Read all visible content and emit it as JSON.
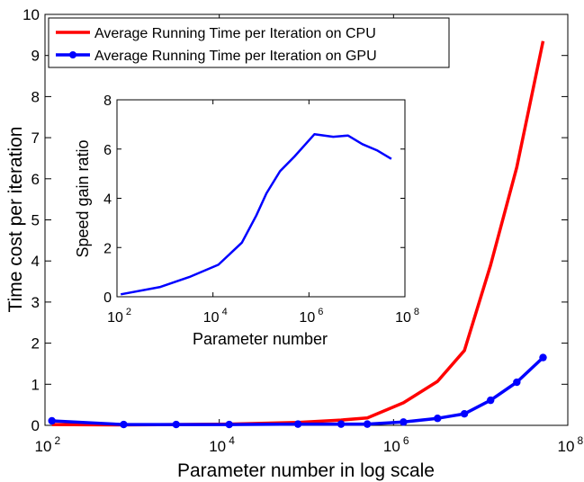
{
  "chart_data": [
    {
      "type": "line",
      "xscale": "log",
      "xlabel": "Parameter number in  log scale",
      "ylabel": "Time cost per iteration",
      "xlim": [
        100,
        100000000
      ],
      "ylim": [
        0,
        10
      ],
      "xticks": [
        {
          "value": 100,
          "base": "10",
          "exp": "2"
        },
        {
          "value": 10000,
          "base": "10",
          "exp": "4"
        },
        {
          "value": 1000000,
          "base": "10",
          "exp": "6"
        },
        {
          "value": 100000000,
          "base": "10",
          "exp": "8"
        }
      ],
      "yticks": [
        "0",
        "1",
        "2",
        "3",
        "4",
        "5",
        "6",
        "7",
        "8",
        "9",
        "10"
      ],
      "grid": false,
      "legend_position": "top-left",
      "series": [
        {
          "name": "Average Running Time per Iteration on CPU",
          "color": "#ff0000",
          "marker": "none",
          "x": [
            120,
            800,
            3200,
            13000,
            80000,
            250000,
            500000,
            1300000,
            3200000,
            6500000,
            13000000,
            26000000,
            52000000
          ],
          "y": [
            0.02,
            0.01,
            0.02,
            0.03,
            0.07,
            0.13,
            0.18,
            0.55,
            1.07,
            1.82,
            3.9,
            6.28,
            9.35
          ]
        },
        {
          "name": "Average Running Time per Iteration on GPU",
          "color": "#0000ff",
          "marker": "circle",
          "x": [
            120,
            800,
            3200,
            13000,
            80000,
            250000,
            500000,
            1300000,
            3200000,
            6500000,
            13000000,
            26000000,
            52000000
          ],
          "y": [
            0.11,
            0.02,
            0.02,
            0.02,
            0.03,
            0.03,
            0.03,
            0.08,
            0.17,
            0.28,
            0.61,
            1.05,
            1.65
          ]
        }
      ]
    },
    {
      "type": "line",
      "xscale": "log",
      "xlabel": "Parameter number",
      "ylabel": "Speed gain ratio",
      "xlim": [
        100,
        100000000
      ],
      "ylim": [
        0,
        8
      ],
      "xticks": [
        {
          "value": 100,
          "base": "10",
          "exp": "2"
        },
        {
          "value": 10000,
          "base": "10",
          "exp": "4"
        },
        {
          "value": 1000000,
          "base": "10",
          "exp": "6"
        },
        {
          "value": 100000000,
          "base": "10",
          "exp": "8"
        }
      ],
      "yticks": [
        "0",
        "2",
        "4",
        "6",
        "8"
      ],
      "grid": false,
      "series": [
        {
          "color": "#0000ff",
          "x": [
            120,
            800,
            3200,
            13000,
            40000,
            80000,
            130000,
            250000,
            500000,
            1300000,
            3200000,
            6500000,
            13000000,
            26000000,
            52000000
          ],
          "y": [
            0.1,
            0.4,
            0.8,
            1.3,
            2.2,
            3.3,
            4.2,
            5.1,
            5.7,
            6.6,
            6.5,
            6.55,
            6.2,
            5.95,
            5.6
          ]
        }
      ]
    }
  ]
}
